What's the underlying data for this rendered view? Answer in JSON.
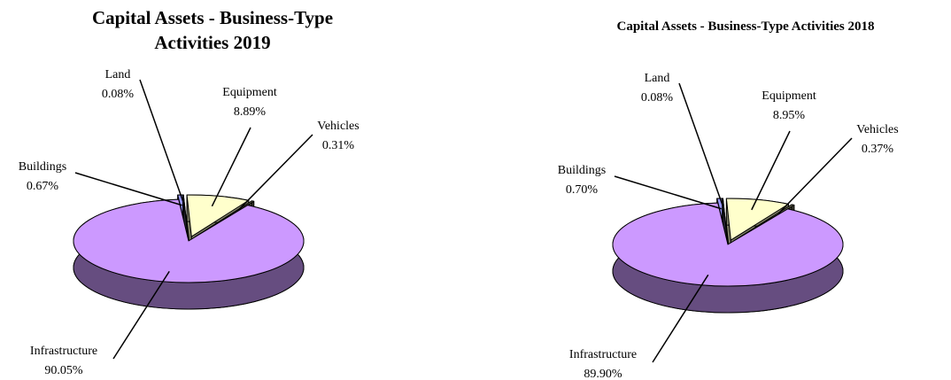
{
  "chart_data": [
    {
      "type": "pie3d",
      "title": "Capital Assets - Business-Type Activities 2019",
      "categories": [
        "Buildings",
        "Land",
        "Equipment",
        "Vehicles",
        "Infrastructure"
      ],
      "values": [
        0.67,
        0.08,
        8.89,
        0.31,
        90.05
      ],
      "value_labels": [
        "0.67%",
        "0.08%",
        "8.89%",
        "0.31%",
        "90.05%"
      ],
      "colors": [
        "#9999ff",
        "#4d4d66",
        "#ffffcc",
        "#8c8c6c",
        "#cc99ff"
      ]
    },
    {
      "type": "pie3d",
      "title": "Capital Assets - Business-Type Activities 2018",
      "categories": [
        "Buildings",
        "Land",
        "Equipment",
        "Vehicles",
        "Infrastructure"
      ],
      "values": [
        0.7,
        0.08,
        8.95,
        0.37,
        89.9
      ],
      "value_labels": [
        "0.70%",
        "0.08%",
        "8.95%",
        "0.37%",
        "89.90%"
      ],
      "colors": [
        "#9999ff",
        "#4d4d66",
        "#ffffcc",
        "#8c8c6c",
        "#cc99ff"
      ]
    }
  ]
}
